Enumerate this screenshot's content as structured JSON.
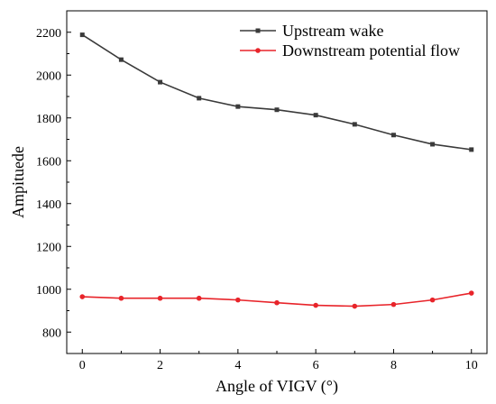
{
  "chart_data": {
    "type": "line",
    "xlabel": "Angle of VIGV (°)",
    "ylabel": "Ampituede",
    "xlim": [
      -0.4,
      10.4
    ],
    "ylim": [
      700,
      2300
    ],
    "xticks": [
      0,
      2,
      4,
      6,
      8,
      10
    ],
    "yticks": [
      800,
      1000,
      1200,
      1400,
      1600,
      1800,
      2000,
      2200
    ],
    "x": [
      0,
      1,
      2,
      3,
      4,
      5,
      6,
      7,
      8,
      9,
      10
    ],
    "series": [
      {
        "name": "Upstream wake",
        "color": "#3a3a3a",
        "marker": "square",
        "values": [
          2188,
          2072,
          1967,
          1892,
          1853,
          1838,
          1813,
          1770,
          1720,
          1677,
          1652
        ]
      },
      {
        "name": "Downstream potential flow",
        "color": "#e8242a",
        "marker": "circle",
        "values": [
          965,
          958,
          958,
          958,
          950,
          937,
          925,
          921,
          929,
          950,
          982
        ]
      }
    ],
    "legend_position": "top-right",
    "grid": false
  }
}
